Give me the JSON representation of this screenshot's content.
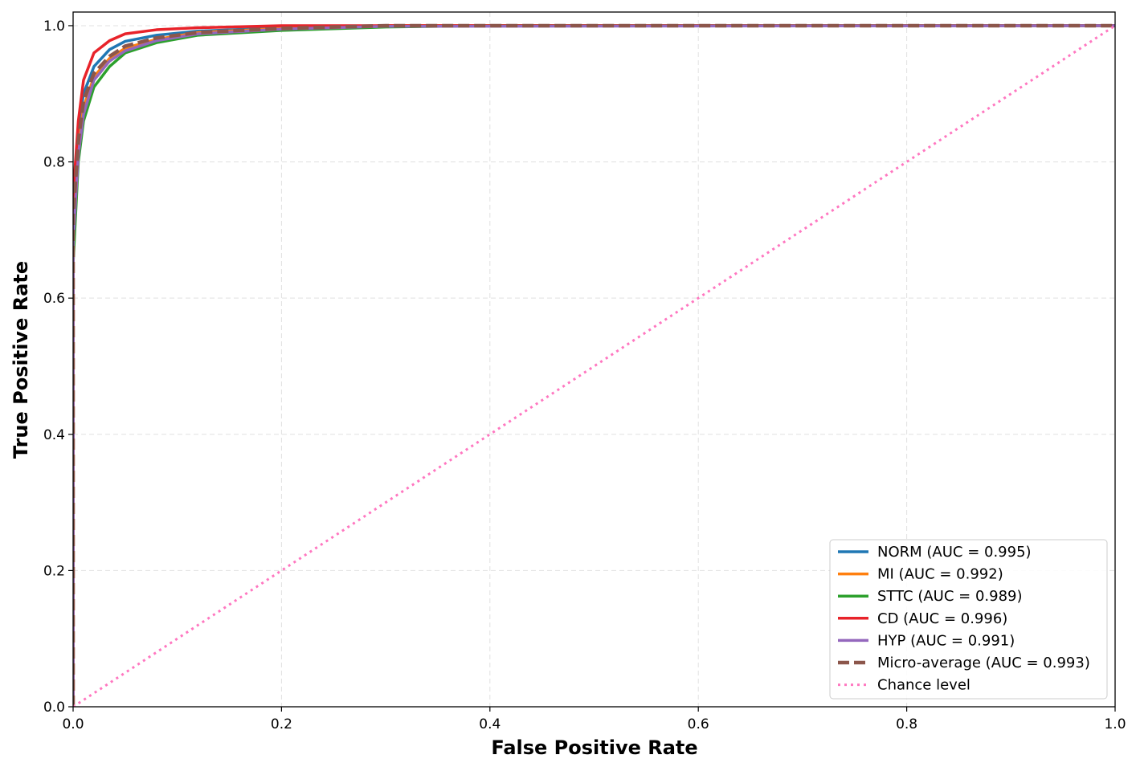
{
  "chart_data": {
    "type": "line",
    "xlabel": "False Positive Rate",
    "ylabel": "True Positive Rate",
    "xlim": [
      0,
      1
    ],
    "ylim": [
      0,
      1.02
    ],
    "xticks": [
      {
        "value": 0,
        "label": "0.0"
      },
      0.2,
      0.4,
      0.6,
      0.8,
      {
        "value": 1,
        "label": "1.0"
      }
    ],
    "yticks": [
      {
        "value": 0,
        "label": "0.0"
      },
      0.2,
      0.4,
      0.6,
      0.8,
      {
        "value": 1,
        "label": "1.0"
      }
    ],
    "grid": true,
    "legend_position": "lower right",
    "series": [
      {
        "name": "NORM (AUC = 0.995)",
        "color": "#1f77b4",
        "linestyle": "solid",
        "x": [
          0,
          0,
          0.005,
          0.01,
          0.02,
          0.035,
          0.05,
          0.08,
          0.12,
          0.2,
          0.3,
          1
        ],
        "values": [
          0,
          0.7,
          0.85,
          0.9,
          0.94,
          0.965,
          0.977,
          0.986,
          0.992,
          0.997,
          1,
          1
        ]
      },
      {
        "name": "MI (AUC = 0.992)",
        "color": "#ff7f0e",
        "linestyle": "solid",
        "x": [
          0,
          0,
          0.005,
          0.01,
          0.02,
          0.035,
          0.05,
          0.08,
          0.12,
          0.2,
          0.3,
          1
        ],
        "values": [
          0,
          0.7,
          0.82,
          0.88,
          0.925,
          0.952,
          0.967,
          0.98,
          0.99,
          0.996,
          1,
          1
        ]
      },
      {
        "name": "STTC (AUC = 0.989)",
        "color": "#2ca02c",
        "linestyle": "solid",
        "x": [
          0,
          0,
          0.005,
          0.01,
          0.02,
          0.035,
          0.05,
          0.08,
          0.12,
          0.2,
          0.3,
          0.4,
          1
        ],
        "values": [
          0,
          0.65,
          0.8,
          0.86,
          0.91,
          0.94,
          0.96,
          0.975,
          0.986,
          0.993,
          0.998,
          1,
          1
        ]
      },
      {
        "name": "CD (AUC = 0.996)",
        "color": "#e8232a",
        "linestyle": "solid",
        "x": [
          0,
          0,
          0.005,
          0.01,
          0.02,
          0.035,
          0.05,
          0.08,
          0.12,
          0.2,
          1
        ],
        "values": [
          0,
          0.75,
          0.86,
          0.92,
          0.96,
          0.978,
          0.988,
          0.994,
          0.997,
          1,
          1
        ]
      },
      {
        "name": "HYP (AUC = 0.991)",
        "color": "#9467bd",
        "linestyle": "solid",
        "x": [
          0,
          0,
          0.005,
          0.01,
          0.02,
          0.035,
          0.05,
          0.08,
          0.12,
          0.2,
          0.3,
          1
        ],
        "values": [
          0,
          0.68,
          0.81,
          0.87,
          0.92,
          0.948,
          0.963,
          0.978,
          0.988,
          0.995,
          0.999,
          1
        ]
      },
      {
        "name": "Micro-average (AUC = 0.993)",
        "color": "#8c564b",
        "linestyle": "dashed",
        "x": [
          0,
          0,
          0.005,
          0.01,
          0.02,
          0.035,
          0.05,
          0.08,
          0.12,
          0.2,
          0.3,
          1
        ],
        "values": [
          0,
          0.72,
          0.83,
          0.89,
          0.93,
          0.955,
          0.97,
          0.982,
          0.99,
          0.996,
          1,
          1
        ]
      },
      {
        "name": "Chance level",
        "color": "#ff77c0",
        "linestyle": "dotted",
        "x": [
          0,
          1
        ],
        "values": [
          0,
          1
        ]
      }
    ]
  }
}
